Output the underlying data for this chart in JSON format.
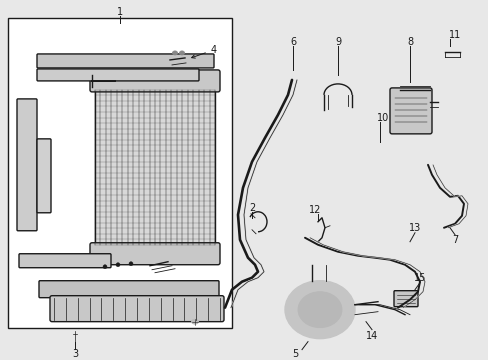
{
  "bg_color": "#e8e8e8",
  "box_bg": "#ffffff",
  "line_color": "#1a1a1a",
  "white": "#e8e8e8",
  "lw_thin": 0.6,
  "lw_med": 1.0,
  "lw_thick": 1.4,
  "font_size": 7
}
